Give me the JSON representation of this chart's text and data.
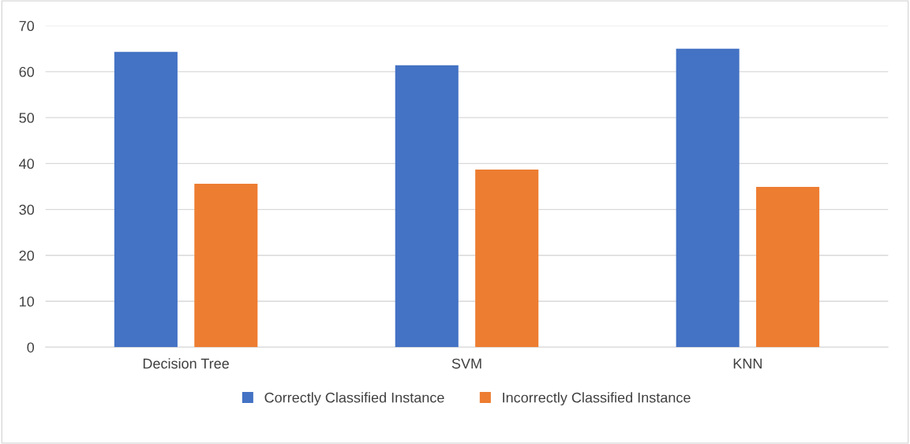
{
  "chart_data": {
    "type": "bar",
    "categories": [
      "Decision Tree",
      "SVM",
      "KNN"
    ],
    "series": [
      {
        "name": "Correctly Classified Instance",
        "color": "#4472c4",
        "values": [
          64.3,
          61.4,
          65.0
        ]
      },
      {
        "name": "Incorrectly Classified Instance",
        "color": "#ed7d31",
        "values": [
          35.6,
          38.7,
          34.9
        ]
      }
    ],
    "ylim": [
      0,
      70
    ],
    "yticks": [
      0,
      10,
      20,
      30,
      40,
      50,
      60,
      70
    ],
    "grid": "y",
    "legend": "bottom"
  }
}
